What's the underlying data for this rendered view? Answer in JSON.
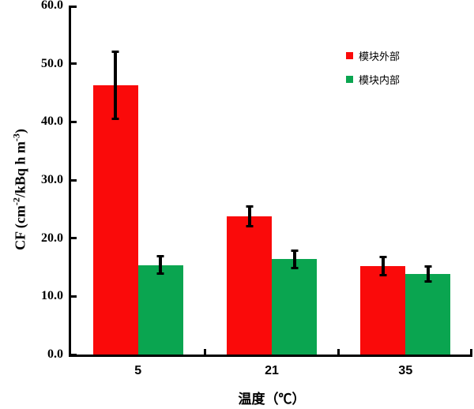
{
  "figure": {
    "background": "#ffffff",
    "axis_color": "#000000",
    "text_color": "#000000"
  },
  "chart_data": {
    "type": "bar",
    "title": "",
    "xlabel": "温度（℃）",
    "ylabel_segments": [
      {
        "text": "CF (cm",
        "sup": false
      },
      {
        "text": "-2",
        "sup": true
      },
      {
        "text": "/kBq h m",
        "sup": false
      },
      {
        "text": "-3",
        "sup": true
      },
      {
        "text": ")",
        "sup": false
      }
    ],
    "categories": [
      "5",
      "21",
      "35"
    ],
    "series": [
      {
        "name": "模块外部",
        "color": "#fa0a0a",
        "values": [
          46.3,
          23.8,
          15.2
        ],
        "errors": [
          6.0,
          1.9,
          1.8
        ]
      },
      {
        "name": "模块内部",
        "color": "#0aa550",
        "values": [
          15.4,
          16.4,
          13.8
        ],
        "errors": [
          1.7,
          1.7,
          1.5
        ]
      }
    ],
    "ylim": [
      0,
      60
    ],
    "ytick_step": 10,
    "ytick_labels": [
      "0.0",
      "10.0",
      "20.0",
      "30.0",
      "40.0",
      "50.0",
      "60.0"
    ],
    "grid": false,
    "legend_position": "upper-right-inside",
    "error_bars": true
  }
}
